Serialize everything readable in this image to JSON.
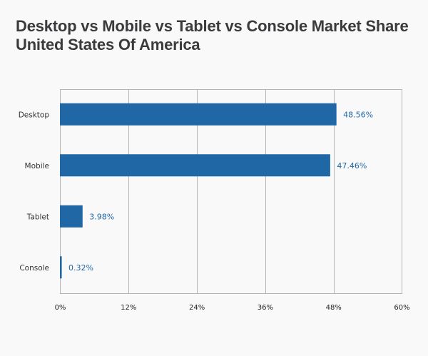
{
  "chart_data": {
    "type": "bar",
    "orientation": "horizontal",
    "title": "Desktop vs Mobile vs Tablet vs Console Market Share",
    "subtitle": "United States Of America",
    "categories": [
      "Desktop",
      "Mobile",
      "Tablet",
      "Console"
    ],
    "values": [
      48.56,
      47.46,
      3.98,
      0.32
    ],
    "value_labels": [
      "48.56%",
      "47.46%",
      "3.98%",
      "0.32%"
    ],
    "xlabel": "",
    "ylabel": "",
    "xlim": [
      0,
      60
    ],
    "xticks": [
      0,
      12,
      24,
      36,
      48,
      60
    ],
    "xtick_labels": [
      "0%",
      "12%",
      "24%",
      "36%",
      "48%",
      "60%"
    ],
    "grid": "vertical",
    "legend": "none",
    "bar_color": "#1f67a5",
    "label_color": "#1f67a5"
  }
}
